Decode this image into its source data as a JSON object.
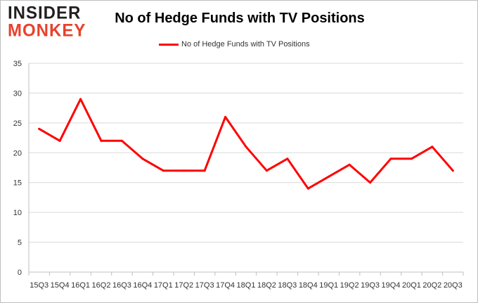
{
  "logo": {
    "line1": "INSIDER",
    "line2": "MONKEY",
    "colors": {
      "line1": "#231f20",
      "line2": "#e8412c"
    }
  },
  "chart_data": {
    "type": "line",
    "title": "No of Hedge Funds with TV Positions",
    "xlabel": "",
    "ylabel": "",
    "categories": [
      "15Q3",
      "15Q4",
      "16Q1",
      "16Q2",
      "16Q3",
      "16Q4",
      "17Q1",
      "17Q2",
      "17Q3",
      "17Q4",
      "18Q1",
      "18Q2",
      "18Q3",
      "18Q4",
      "19Q1",
      "19Q2",
      "19Q3",
      "19Q4",
      "20Q1",
      "20Q2",
      "20Q3"
    ],
    "series": [
      {
        "name": "No of Hedge Funds with TV Positions",
        "color": "#ff0000",
        "values": [
          24,
          22,
          29,
          22,
          22,
          19,
          17,
          17,
          17,
          26,
          21,
          17,
          19,
          14,
          16,
          18,
          15,
          19,
          19,
          21,
          17
        ]
      }
    ],
    "ylim": [
      0,
      35
    ],
    "yticks": [
      0,
      5,
      10,
      15,
      20,
      25,
      30,
      35
    ],
    "grid": true,
    "legend": "top-center"
  }
}
